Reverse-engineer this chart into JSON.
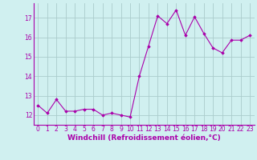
{
  "x": [
    0,
    1,
    2,
    3,
    4,
    5,
    6,
    7,
    8,
    9,
    10,
    11,
    12,
    13,
    14,
    15,
    16,
    17,
    18,
    19,
    20,
    21,
    22,
    23
  ],
  "y": [
    12.5,
    12.1,
    12.8,
    12.2,
    12.2,
    12.3,
    12.3,
    12.0,
    12.1,
    12.0,
    11.9,
    14.0,
    15.55,
    17.1,
    16.7,
    17.4,
    16.1,
    17.05,
    16.2,
    15.45,
    15.2,
    15.85,
    15.85,
    16.1
  ],
  "line_color": "#aa00aa",
  "marker": "D",
  "marker_size": 1.8,
  "bg_color": "#d0f0f0",
  "grid_color": "#aacccc",
  "xlabel": "Windchill (Refroidissement éolien,°C)",
  "xlabel_fontsize": 6.5,
  "xlim": [
    -0.5,
    23.5
  ],
  "ylim": [
    11.5,
    17.75
  ],
  "yticks": [
    12,
    13,
    14,
    15,
    16,
    17
  ],
  "xticks": [
    0,
    1,
    2,
    3,
    4,
    5,
    6,
    7,
    8,
    9,
    10,
    11,
    12,
    13,
    14,
    15,
    16,
    17,
    18,
    19,
    20,
    21,
    22,
    23
  ],
  "tick_fontsize": 5.5
}
